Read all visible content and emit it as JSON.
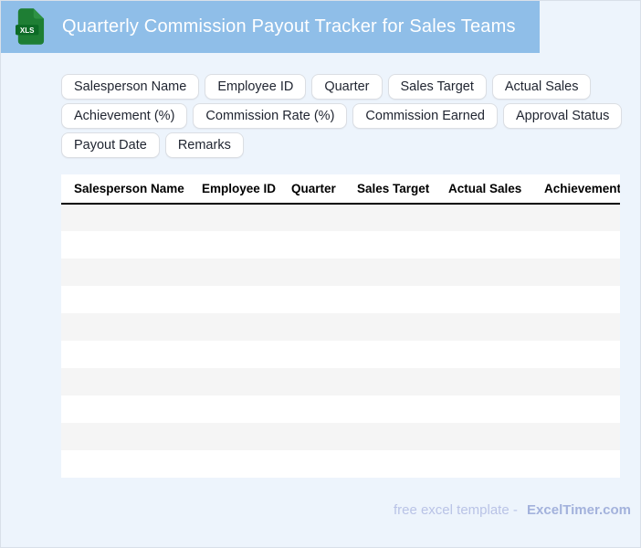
{
  "header": {
    "title": "Quarterly Commission Payout Tracker for Sales Teams",
    "icon_label": "XLS"
  },
  "chips": [
    "Salesperson Name",
    "Employee ID",
    "Quarter",
    "Sales Target",
    "Actual Sales",
    "Achievement (%)",
    "Commission Rate (%)",
    "Commission Earned",
    "Approval Status",
    "Payout Date",
    "Remarks"
  ],
  "table": {
    "columns": [
      "Salesperson Name",
      "Employee ID",
      "Quarter",
      "Sales Target",
      "Actual Sales",
      "Achievement (%)"
    ],
    "row_count": 10
  },
  "footer": {
    "text": "free excel template -",
    "brand": "ExcelTimer.com"
  },
  "colors": {
    "header_band": "#8FBEE8",
    "page_background": "#EDF4FC",
    "page_border": "#D9E0E9",
    "icon_green": "#1E7E34",
    "icon_band_green": "#0C6B26",
    "row_stripe": "#F5F5F5",
    "footer_text": "#B9C3E6",
    "footer_brand": "#A3B2DC"
  }
}
